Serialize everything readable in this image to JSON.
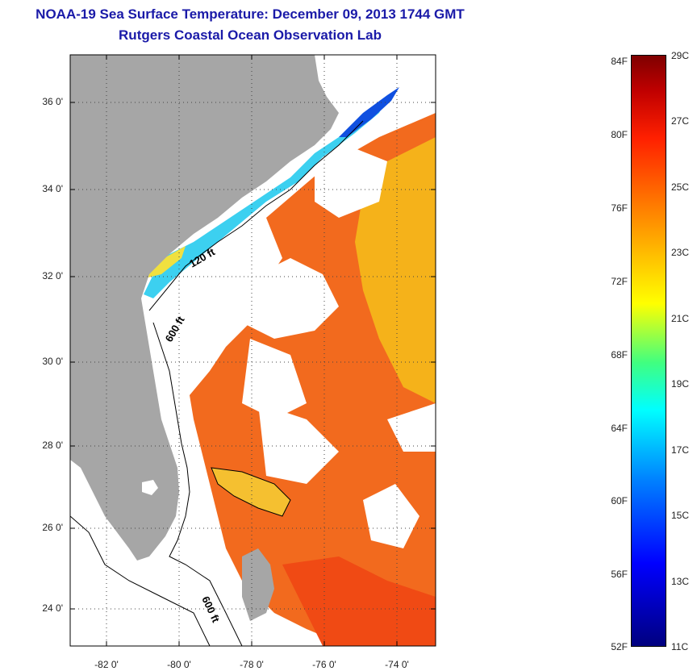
{
  "title": {
    "line1": "NOAA-19 Sea Surface Temperature:  December 09, 2013 1744 GMT",
    "line2": "Rutgers Coastal Ocean Observation Lab"
  },
  "axes": {
    "latitude_labels": [
      "36 0'",
      "34 0'",
      "32 0'",
      "30 0'",
      "28 0'",
      "26 0'",
      "24 0'"
    ],
    "longitude_labels": [
      "-82 0'",
      "-80 0'",
      "-78 0'",
      "-76 0'",
      "-74 0'"
    ],
    "lat_range": [
      23,
      37.2
    ],
    "lon_range": [
      -83,
      -73
    ],
    "grid": "dotted"
  },
  "contour_labels": [
    "120 ft",
    "600 ft",
    "600 ft"
  ],
  "colorbar": {
    "fahrenheit_labels": [
      "84F",
      "80F",
      "76F",
      "72F",
      "68F",
      "64F",
      "60F",
      "56F",
      "52F"
    ],
    "celsius_labels": [
      "29C",
      "27C",
      "25C",
      "23C",
      "21C",
      "19C",
      "17C",
      "15C",
      "13C",
      "11C"
    ],
    "range_c": [
      11,
      29
    ],
    "colormap": "jet"
  },
  "colors": {
    "title": "#1a1aa8",
    "land": "#a6a6a6",
    "warm": "#f07020",
    "cool": "#00c0ff"
  }
}
